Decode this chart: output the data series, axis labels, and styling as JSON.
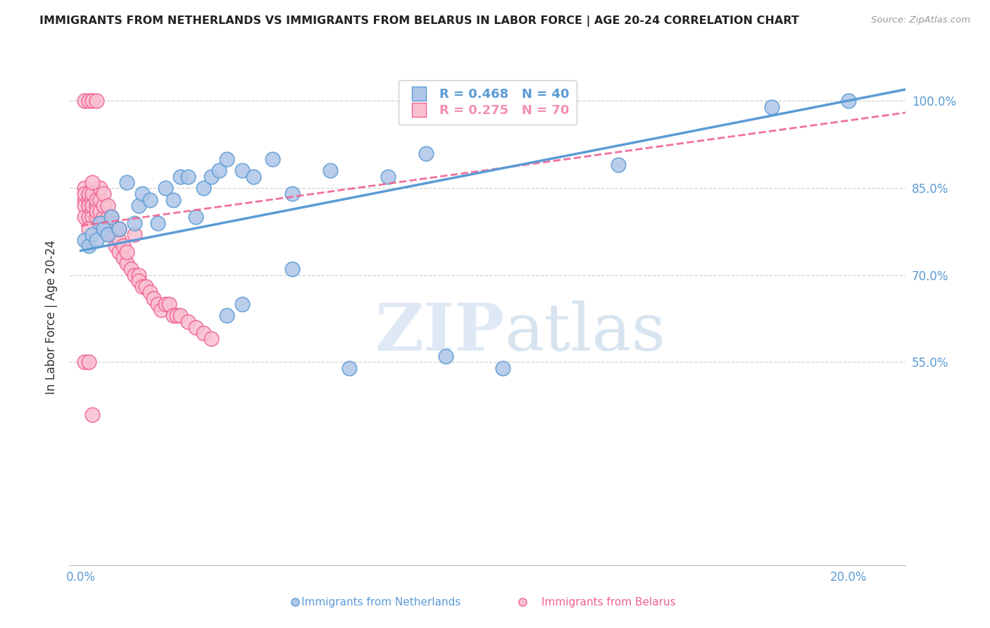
{
  "title": "IMMIGRANTS FROM NETHERLANDS VS IMMIGRANTS FROM BELARUS IN LABOR FORCE | AGE 20-24 CORRELATION CHART",
  "source": "Source: ZipAtlas.com",
  "ylabel_left": "In Labor Force | Age 20-24",
  "ylabel_right_ticks": [
    0.55,
    0.7,
    0.85,
    1.0
  ],
  "ylabel_right_labels": [
    "55.0%",
    "70.0%",
    "85.0%",
    "100.0%"
  ],
  "xlabel_bottom_ticks": [
    0.0,
    0.05,
    0.1,
    0.15,
    0.2
  ],
  "xlabel_bottom_labels": [
    "0.0%",
    "",
    "",
    "",
    "20.0%"
  ],
  "xmin": -0.003,
  "xmax": 0.215,
  "ymin": 0.2,
  "ymax": 1.055,
  "legend_entries": [
    {
      "label": "R = 0.468   N = 40",
      "color": "#5b9bd5"
    },
    {
      "label": "R = 0.275   N = 70",
      "color": "#f48fb1"
    }
  ],
  "netherlands_color": "#aec6e8",
  "belarus_color": "#f9c0d0",
  "netherlands_edge": "#5b9bd5",
  "belarus_edge": "#f06292",
  "trend_blue_color": "#5b9bd5",
  "trend_pink_color": "#f06292",
  "watermark_zip": "ZIP",
  "watermark_atlas": "atlas",
  "watermark_color_zip": "#c8d8ec",
  "watermark_color_atlas": "#a8c4e0",
  "background": "#ffffff",
  "grid_color": "#d0d0d0",
  "axis_color": "#5b9bd5",
  "netherlands_x": [
    0.001,
    0.002,
    0.003,
    0.004,
    0.005,
    0.006,
    0.007,
    0.008,
    0.01,
    0.012,
    0.014,
    0.015,
    0.016,
    0.018,
    0.02,
    0.022,
    0.024,
    0.026,
    0.028,
    0.03,
    0.032,
    0.034,
    0.036,
    0.038,
    0.042,
    0.045,
    0.05,
    0.055,
    0.065,
    0.08,
    0.09,
    0.038,
    0.042,
    0.055,
    0.07,
    0.095,
    0.11,
    0.14,
    0.18,
    0.2
  ],
  "netherlands_y": [
    0.76,
    0.75,
    0.77,
    0.76,
    0.79,
    0.78,
    0.77,
    0.8,
    0.78,
    0.86,
    0.79,
    0.82,
    0.84,
    0.83,
    0.79,
    0.85,
    0.83,
    0.87,
    0.87,
    0.8,
    0.85,
    0.87,
    0.88,
    0.9,
    0.88,
    0.87,
    0.9,
    0.84,
    0.88,
    0.87,
    0.91,
    0.63,
    0.65,
    0.71,
    0.54,
    0.56,
    0.54,
    0.89,
    0.99,
    1.0
  ],
  "belarus_x": [
    0.001,
    0.001,
    0.001,
    0.001,
    0.001,
    0.002,
    0.002,
    0.002,
    0.002,
    0.003,
    0.003,
    0.003,
    0.003,
    0.003,
    0.004,
    0.004,
    0.004,
    0.004,
    0.005,
    0.005,
    0.005,
    0.005,
    0.006,
    0.006,
    0.006,
    0.006,
    0.007,
    0.007,
    0.007,
    0.008,
    0.008,
    0.008,
    0.009,
    0.009,
    0.01,
    0.01,
    0.01,
    0.011,
    0.011,
    0.012,
    0.012,
    0.013,
    0.014,
    0.015,
    0.015,
    0.016,
    0.017,
    0.018,
    0.019,
    0.02,
    0.021,
    0.022,
    0.023,
    0.024,
    0.025,
    0.026,
    0.028,
    0.03,
    0.032,
    0.034,
    0.001,
    0.002,
    0.003,
    0.004,
    0.003,
    0.002,
    0.001,
    0.002,
    0.014,
    0.003
  ],
  "belarus_y": [
    0.85,
    0.83,
    0.82,
    0.8,
    0.84,
    0.83,
    0.82,
    0.8,
    0.84,
    0.81,
    0.83,
    0.8,
    0.84,
    0.82,
    0.82,
    0.8,
    0.83,
    0.81,
    0.79,
    0.81,
    0.83,
    0.85,
    0.8,
    0.82,
    0.84,
    0.78,
    0.8,
    0.82,
    0.78,
    0.8,
    0.77,
    0.79,
    0.75,
    0.77,
    0.74,
    0.76,
    0.78,
    0.73,
    0.75,
    0.72,
    0.74,
    0.71,
    0.7,
    0.7,
    0.69,
    0.68,
    0.68,
    0.67,
    0.66,
    0.65,
    0.64,
    0.65,
    0.65,
    0.63,
    0.63,
    0.63,
    0.62,
    0.61,
    0.6,
    0.59,
    1.0,
    1.0,
    1.0,
    1.0,
    0.86,
    0.78,
    0.55,
    0.55,
    0.77,
    0.46
  ],
  "nl_trend_x": [
    0.0,
    0.215
  ],
  "nl_trend_y": [
    0.742,
    1.02
  ],
  "bl_trend_x": [
    0.0,
    0.215
  ],
  "bl_trend_y": [
    0.785,
    0.98
  ]
}
